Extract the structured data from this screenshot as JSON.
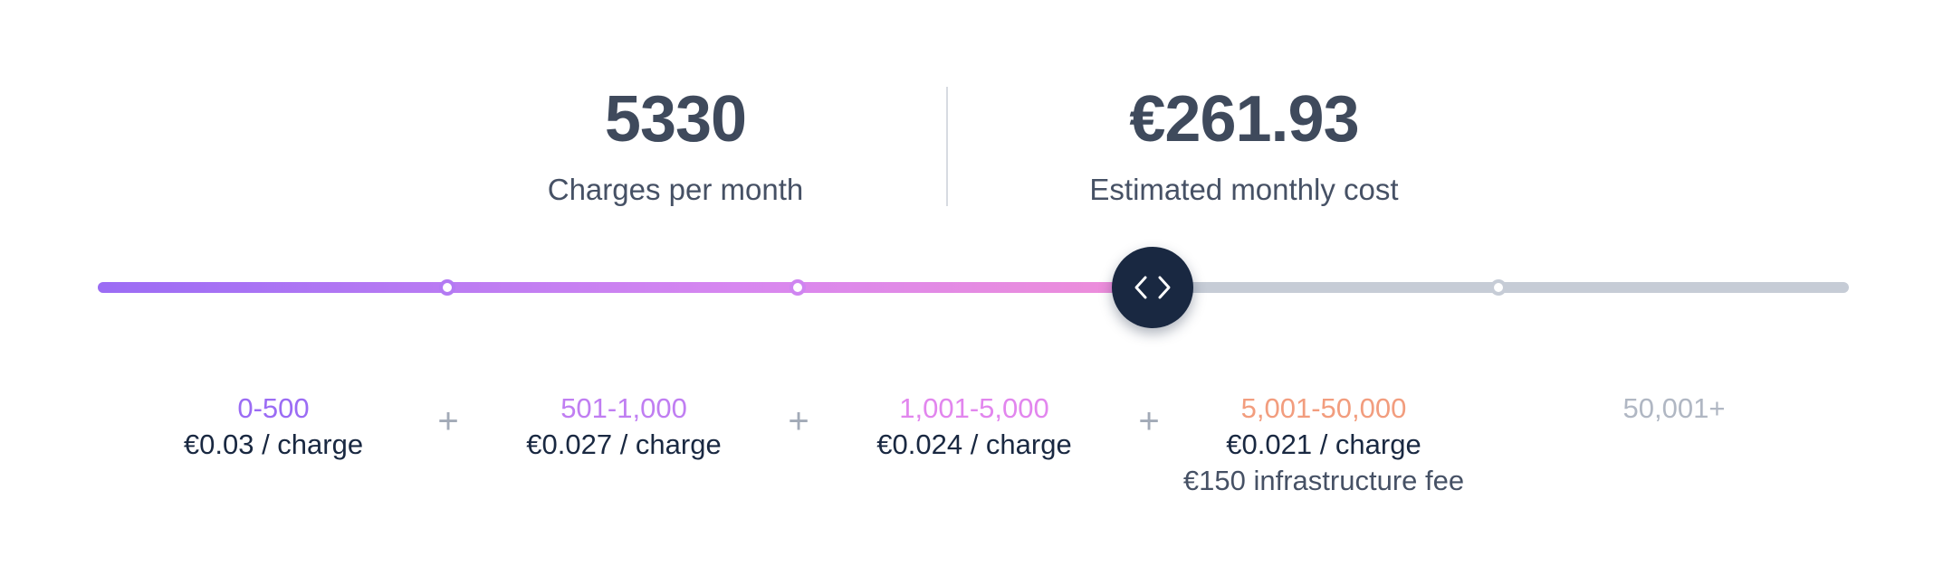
{
  "summary": {
    "charges_value": "5330",
    "charges_label": "Charges per month",
    "cost_value": "€261.93",
    "cost_label": "Estimated monthly cost"
  },
  "slider": {
    "current_value": 5330,
    "thumb_icon": "code-chevrons-icon",
    "track_color": "#c6ccd6",
    "fill_gradient": [
      "#9b6cf4",
      "#ef8ed8"
    ],
    "thumb_color": "#192841"
  },
  "tiers": [
    {
      "range": "0-500",
      "price": "€0.03 / charge",
      "color": "#9b6cf4"
    },
    {
      "range": "501-1,000",
      "price": "€0.027 / charge",
      "color": "#c07ef2"
    },
    {
      "range": "1,001-5,000",
      "price": "€0.024 / charge",
      "color": "#e286ee"
    },
    {
      "range": "5,001-50,000",
      "price": "€0.021 / charge",
      "fee": "€150 infrastructure fee",
      "color": "#f29d7e"
    },
    {
      "range": "50,001+",
      "color": "#b0b7c3"
    }
  ],
  "separator_symbol": "+"
}
